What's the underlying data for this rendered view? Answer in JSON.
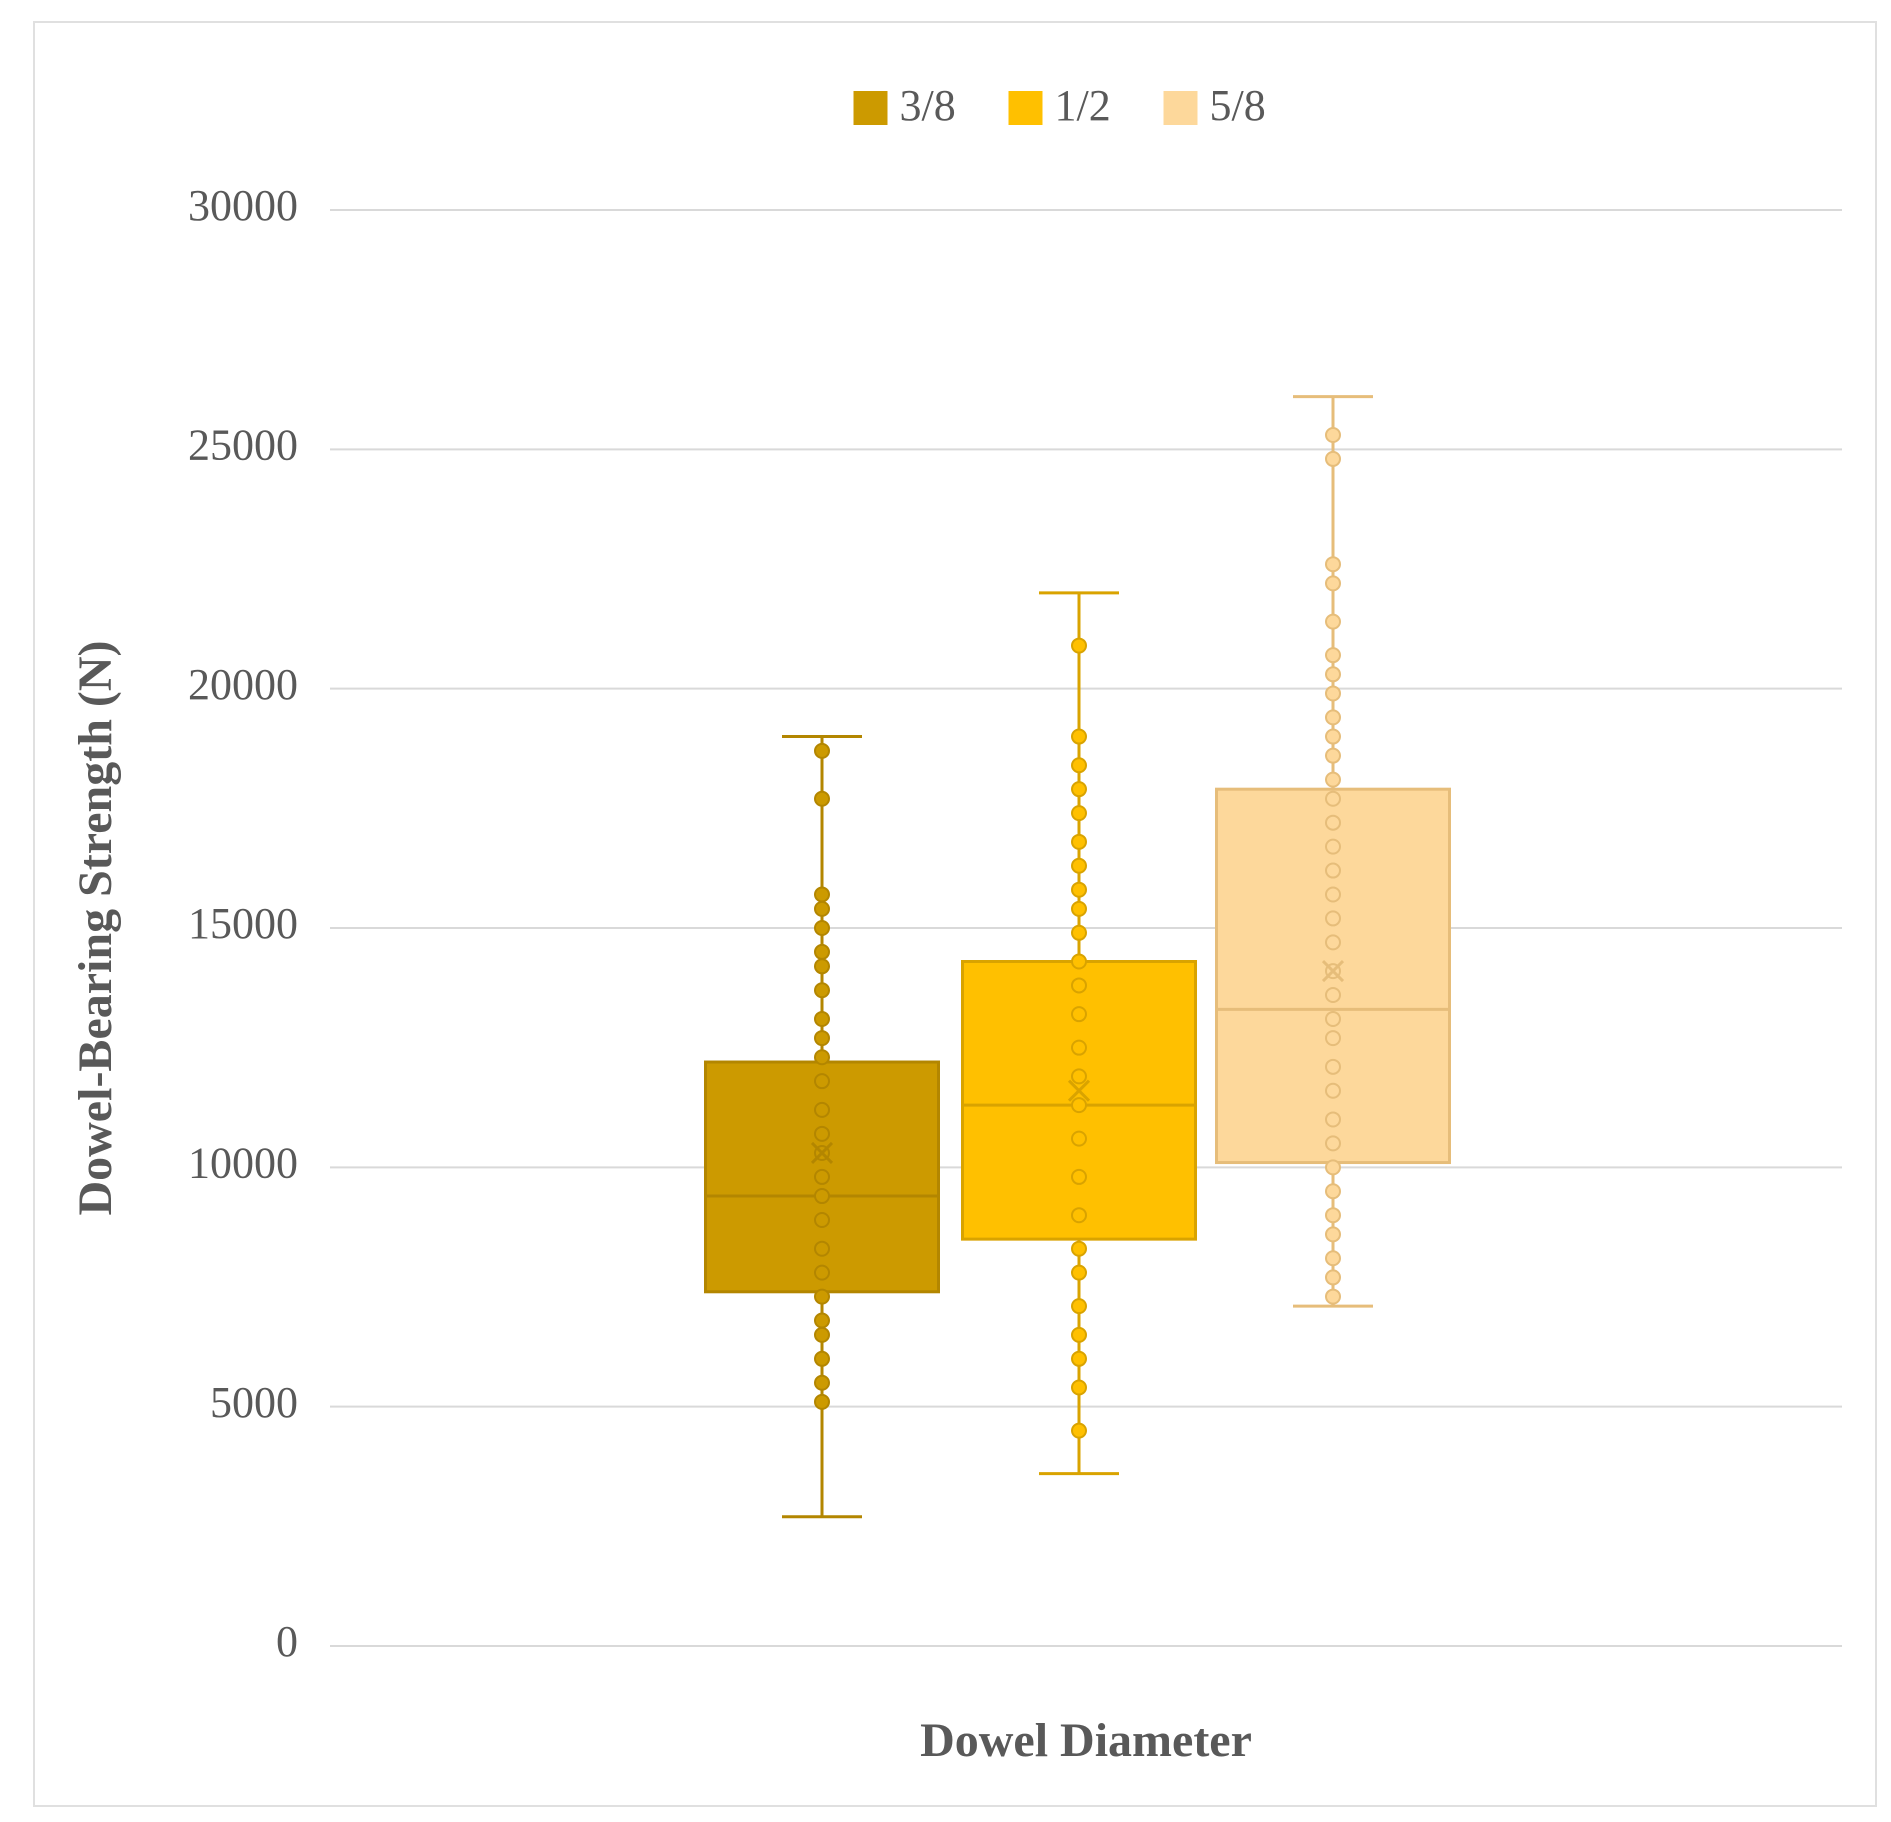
{
  "chart_data": {
    "type": "box",
    "y_label": "Dowel-Bearing Strength (N)",
    "x_label": "Dowel Diameter",
    "ylim": [
      0,
      30000
    ],
    "yticks": [
      0,
      5000,
      10000,
      15000,
      20000,
      25000,
      30000
    ],
    "grid": true,
    "legend": "top",
    "series": [
      {
        "name": "3/8",
        "color": "#cc9a00",
        "min": 2700,
        "q1": 7400,
        "median": 9400,
        "q3": 12200,
        "max": 19000,
        "mean": 10300,
        "points": [
          18700,
          17700,
          15700,
          15400,
          15000,
          14500,
          14200,
          13700,
          13100,
          12700,
          12300,
          11800,
          11200,
          10700,
          10300,
          9800,
          9400,
          8900,
          8300,
          7800,
          7300,
          6800,
          6500,
          6000,
          5500,
          5100
        ]
      },
      {
        "name": "1/2",
        "color": "#ffc000",
        "min": 3600,
        "q1": 8500,
        "median": 11300,
        "q3": 14300,
        "max": 22000,
        "mean": 11600,
        "points": [
          20900,
          19000,
          18400,
          17900,
          17400,
          16800,
          16300,
          15800,
          15400,
          14900,
          14300,
          13800,
          13200,
          12500,
          11900,
          11300,
          10600,
          9800,
          9000,
          8300,
          7800,
          7100,
          6500,
          6000,
          5400,
          4500
        ]
      },
      {
        "name": "5/8",
        "color": "#fdd89b",
        "min": 7100,
        "q1": 10100,
        "median": 13300,
        "q3": 17900,
        "max": 26100,
        "mean": 14100,
        "points": [
          25300,
          24800,
          22600,
          22200,
          21400,
          20700,
          20300,
          19900,
          19400,
          19000,
          18600,
          18100,
          17700,
          17200,
          16700,
          16200,
          15700,
          15200,
          14700,
          14100,
          13600,
          13100,
          12700,
          12100,
          11600,
          11000,
          10500,
          10000,
          9500,
          9000,
          8600,
          8100,
          7700,
          7300
        ]
      }
    ]
  }
}
